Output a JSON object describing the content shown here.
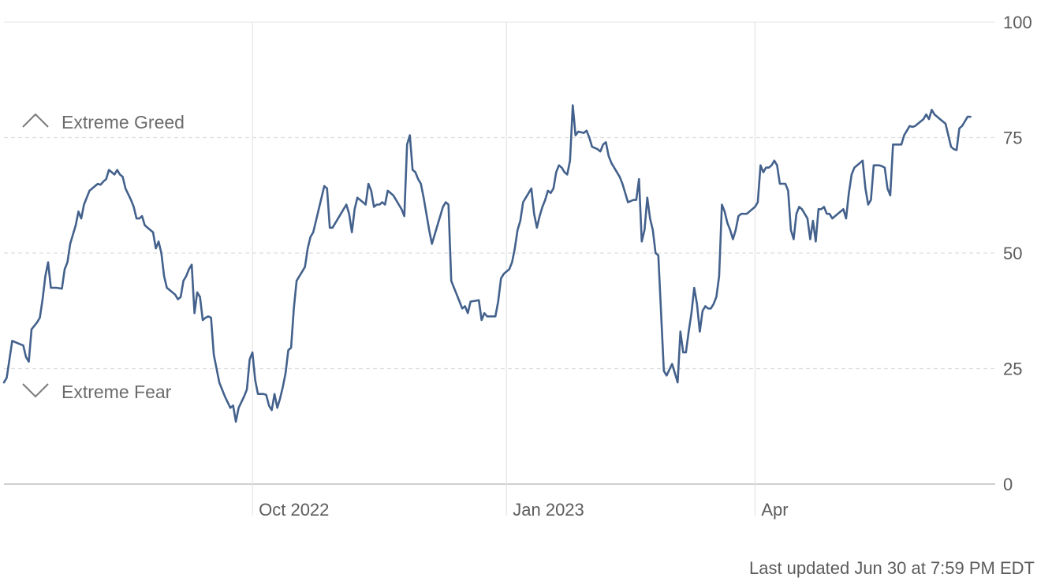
{
  "chart_data": {
    "type": "line",
    "ylim": [
      0,
      100
    ],
    "y_ticks": [
      "0",
      "25",
      "50",
      "75",
      "100"
    ],
    "x_ticks": [
      {
        "label": "Oct 2022",
        "day": 90
      },
      {
        "label": "Jan 2023",
        "day": 182
      },
      {
        "label": "Apr",
        "day": 272
      }
    ],
    "x_range_days": [
      0,
      359
    ],
    "grid": true,
    "zones": [
      {
        "label": "Extreme Greed",
        "icon": "chevron-up-icon"
      },
      {
        "label": "Extreme Fear",
        "icon": "chevron-down-icon"
      }
    ],
    "series": [
      {
        "color": "#43618c",
        "points": [
          [
            0,
            22
          ],
          [
            1,
            23
          ],
          [
            3,
            31
          ],
          [
            5,
            30.5
          ],
          [
            7,
            30
          ],
          [
            8,
            27.5
          ],
          [
            9,
            26.5
          ],
          [
            10,
            33.5
          ],
          [
            12,
            35
          ],
          [
            13,
            36
          ],
          [
            14,
            40
          ],
          [
            15,
            45
          ],
          [
            16,
            48
          ],
          [
            17,
            42.5
          ],
          [
            19,
            42.5
          ],
          [
            21,
            42.3
          ],
          [
            22,
            46.5
          ],
          [
            23,
            48
          ],
          [
            24,
            52
          ],
          [
            26,
            56
          ],
          [
            27,
            59
          ],
          [
            28,
            57.5
          ],
          [
            29,
            60.5
          ],
          [
            30,
            62
          ],
          [
            31,
            63.5
          ],
          [
            32,
            64
          ],
          [
            33,
            64.5
          ],
          [
            34,
            65
          ],
          [
            35,
            64.8
          ],
          [
            36,
            65.5
          ],
          [
            37,
            66
          ],
          [
            38,
            68
          ],
          [
            39,
            67.5
          ],
          [
            40,
            67
          ],
          [
            41,
            68
          ],
          [
            42,
            67
          ],
          [
            43,
            66.5
          ],
          [
            44,
            64
          ],
          [
            46,
            61.5
          ],
          [
            47,
            60
          ],
          [
            48,
            57.5
          ],
          [
            49,
            57.5
          ],
          [
            50,
            58
          ],
          [
            51,
            56
          ],
          [
            53,
            55
          ],
          [
            54,
            54.5
          ],
          [
            55,
            51
          ],
          [
            56,
            52.5
          ],
          [
            57,
            50
          ],
          [
            58,
            45
          ],
          [
            59,
            42.5
          ],
          [
            61,
            41.5
          ],
          [
            62,
            41
          ],
          [
            63,
            40
          ],
          [
            64,
            40.5
          ],
          [
            65,
            44
          ],
          [
            66,
            45
          ],
          [
            67,
            46.5
          ],
          [
            68,
            47.5
          ],
          [
            69,
            37
          ],
          [
            70,
            41.5
          ],
          [
            71,
            40.5
          ],
          [
            72,
            35.5
          ],
          [
            73,
            36
          ],
          [
            74,
            36.3
          ],
          [
            75,
            36
          ],
          [
            76,
            28
          ],
          [
            78,
            22
          ],
          [
            80,
            19
          ],
          [
            82,
            16.5
          ],
          [
            83,
            17
          ],
          [
            84,
            13.5
          ],
          [
            85,
            16.5
          ],
          [
            87,
            19
          ],
          [
            88,
            20.5
          ],
          [
            89,
            27
          ],
          [
            90,
            28.5
          ],
          [
            91,
            22.5
          ],
          [
            92,
            19.5
          ],
          [
            94,
            19.5
          ],
          [
            95,
            19.3
          ],
          [
            96,
            17
          ],
          [
            97,
            16
          ],
          [
            98,
            19.5
          ],
          [
            99,
            16.5
          ],
          [
            100,
            18.5
          ],
          [
            101,
            21
          ],
          [
            102,
            24
          ],
          [
            103,
            29
          ],
          [
            104,
            29.5
          ],
          [
            105,
            38
          ],
          [
            106,
            44
          ],
          [
            108,
            46
          ],
          [
            109,
            47
          ],
          [
            110,
            51
          ],
          [
            111,
            53.5
          ],
          [
            112,
            54.5
          ],
          [
            113,
            57
          ],
          [
            114,
            59.5
          ],
          [
            115,
            62
          ],
          [
            116,
            64.5
          ],
          [
            117,
            64
          ],
          [
            118,
            55.5
          ],
          [
            119,
            55.5
          ],
          [
            121,
            57.5
          ],
          [
            122,
            58.5
          ],
          [
            123,
            59.5
          ],
          [
            124,
            60.5
          ],
          [
            125,
            58.5
          ],
          [
            126,
            54.5
          ],
          [
            127,
            59.5
          ],
          [
            128,
            62
          ],
          [
            129,
            61.5
          ],
          [
            130,
            61
          ],
          [
            131,
            60.5
          ],
          [
            132,
            65
          ],
          [
            133,
            63.5
          ],
          [
            134,
            60
          ],
          [
            135,
            60.5
          ],
          [
            136,
            60.5
          ],
          [
            137,
            61
          ],
          [
            138,
            60.5
          ],
          [
            139,
            63.5
          ],
          [
            140,
            63
          ],
          [
            141,
            62.5
          ],
          [
            142,
            61.5
          ],
          [
            143,
            60.5
          ],
          [
            144,
            59.5
          ],
          [
            145,
            58
          ],
          [
            146,
            73.5
          ],
          [
            147,
            75.5
          ],
          [
            148,
            68
          ],
          [
            149,
            67.5
          ],
          [
            150,
            66
          ],
          [
            151,
            65
          ],
          [
            152,
            62
          ],
          [
            153,
            58.5
          ],
          [
            154,
            55
          ],
          [
            155,
            52
          ],
          [
            156,
            54
          ],
          [
            157,
            56
          ],
          [
            158,
            58
          ],
          [
            159,
            60
          ],
          [
            160,
            61
          ],
          [
            161,
            60.5
          ],
          [
            162,
            44
          ],
          [
            163,
            42.5
          ],
          [
            164,
            41
          ],
          [
            165,
            39.5
          ],
          [
            166,
            38
          ],
          [
            167,
            38.5
          ],
          [
            168,
            37
          ],
          [
            169,
            39.5
          ],
          [
            172,
            39.8
          ],
          [
            173,
            35.5
          ],
          [
            174,
            37
          ],
          [
            175,
            36.3
          ],
          [
            178,
            36.3
          ],
          [
            179,
            39.5
          ],
          [
            180,
            44.5
          ],
          [
            181,
            45.5
          ],
          [
            182,
            46
          ],
          [
            183,
            46.5
          ],
          [
            184,
            48
          ],
          [
            185,
            51
          ],
          [
            186,
            55
          ],
          [
            187,
            57
          ],
          [
            188,
            61
          ],
          [
            189,
            62
          ],
          [
            190,
            63
          ],
          [
            191,
            64
          ],
          [
            192,
            58.5
          ],
          [
            193,
            55.5
          ],
          [
            194,
            58
          ],
          [
            195,
            60
          ],
          [
            196,
            61.5
          ],
          [
            197,
            63.5
          ],
          [
            198,
            63
          ],
          [
            199,
            64
          ],
          [
            200,
            67.5
          ],
          [
            201,
            69
          ],
          [
            202,
            68.5
          ],
          [
            203,
            67.5
          ],
          [
            204,
            67
          ],
          [
            205,
            70
          ],
          [
            206,
            82
          ],
          [
            207,
            75.5
          ],
          [
            208,
            76.3
          ],
          [
            210,
            76
          ],
          [
            211,
            76.5
          ],
          [
            212,
            75
          ],
          [
            213,
            73
          ],
          [
            215,
            72.5
          ],
          [
            216,
            72
          ],
          [
            217,
            73.5
          ],
          [
            218,
            74
          ],
          [
            219,
            71
          ],
          [
            220,
            69.5
          ],
          [
            221,
            68.5
          ],
          [
            222,
            67.5
          ],
          [
            223,
            66.5
          ],
          [
            224,
            65
          ],
          [
            225,
            63
          ],
          [
            226,
            61
          ],
          [
            228,
            61.5
          ],
          [
            229,
            61.5
          ],
          [
            230,
            66
          ],
          [
            231,
            52.5
          ],
          [
            232,
            55
          ],
          [
            233,
            62
          ],
          [
            234,
            57.5
          ],
          [
            235,
            55
          ],
          [
            236,
            50
          ],
          [
            237,
            49.5
          ],
          [
            238,
            37
          ],
          [
            239,
            24.5
          ],
          [
            240,
            23.5
          ],
          [
            242,
            26
          ],
          [
            243,
            24
          ],
          [
            244,
            22
          ],
          [
            245,
            33
          ],
          [
            246,
            28.5
          ],
          [
            247,
            28.5
          ],
          [
            248,
            33
          ],
          [
            249,
            37
          ],
          [
            250,
            42.5
          ],
          [
            251,
            39
          ],
          [
            252,
            33
          ],
          [
            253,
            37.5
          ],
          [
            254,
            38.5
          ],
          [
            255,
            38
          ],
          [
            256,
            38
          ],
          [
            257,
            39
          ],
          [
            258,
            40.5
          ],
          [
            259,
            45
          ],
          [
            260,
            60.5
          ],
          [
            261,
            59
          ],
          [
            262,
            56.5
          ],
          [
            263,
            55
          ],
          [
            264,
            53
          ],
          [
            265,
            55
          ],
          [
            266,
            58
          ],
          [
            267,
            58.5
          ],
          [
            268,
            58.5
          ],
          [
            269,
            58.5
          ],
          [
            270,
            59
          ],
          [
            271,
            59.5
          ],
          [
            272,
            60
          ],
          [
            273,
            61
          ],
          [
            274,
            69
          ],
          [
            275,
            67.5
          ],
          [
            276,
            68.5
          ],
          [
            277,
            68.5
          ],
          [
            278,
            69
          ],
          [
            279,
            70
          ],
          [
            280,
            69
          ],
          [
            281,
            65
          ],
          [
            282,
            65
          ],
          [
            283,
            65
          ],
          [
            284,
            63.5
          ],
          [
            285,
            55
          ],
          [
            286,
            53
          ],
          [
            287,
            58.5
          ],
          [
            288,
            60
          ],
          [
            289,
            59.5
          ],
          [
            290,
            58.5
          ],
          [
            291,
            57.5
          ],
          [
            292,
            53
          ],
          [
            293,
            57
          ],
          [
            294,
            52.5
          ],
          [
            295,
            59.5
          ],
          [
            296,
            59.5
          ],
          [
            297,
            60
          ],
          [
            298,
            58.5
          ],
          [
            299,
            58.5
          ],
          [
            300,
            57.5
          ],
          [
            301,
            58
          ],
          [
            302,
            58.5
          ],
          [
            303,
            59
          ],
          [
            304,
            59.5
          ],
          [
            305,
            57.5
          ],
          [
            306,
            63
          ],
          [
            307,
            67
          ],
          [
            308,
            68.5
          ],
          [
            309,
            69
          ],
          [
            310,
            69.5
          ],
          [
            311,
            70
          ],
          [
            312,
            64
          ],
          [
            313,
            60.5
          ],
          [
            314,
            61.5
          ],
          [
            315,
            69
          ],
          [
            316,
            69
          ],
          [
            317,
            69
          ],
          [
            318,
            68.8
          ],
          [
            319,
            68.5
          ],
          [
            320,
            64
          ],
          [
            321,
            62.5
          ],
          [
            322,
            73.5
          ],
          [
            323,
            73.5
          ],
          [
            325,
            73.5
          ],
          [
            326,
            75.5
          ],
          [
            327,
            76.5
          ],
          [
            328,
            77.5
          ],
          [
            329,
            77.3
          ],
          [
            330,
            77.5
          ],
          [
            331,
            78
          ],
          [
            332,
            78.5
          ],
          [
            333,
            79
          ],
          [
            334,
            80
          ],
          [
            335,
            79
          ],
          [
            336,
            81
          ],
          [
            337,
            80
          ],
          [
            338,
            79.5
          ],
          [
            339,
            79
          ],
          [
            340,
            78.5
          ],
          [
            341,
            78
          ],
          [
            343,
            73
          ],
          [
            344,
            72.5
          ],
          [
            345,
            72.3
          ],
          [
            346,
            77
          ],
          [
            347,
            77.5
          ],
          [
            348,
            78.5
          ],
          [
            349,
            79.5
          ],
          [
            350,
            79.5
          ]
        ]
      }
    ]
  },
  "footer": {
    "last_updated": "Last updated Jun 30 at 7:59 PM EDT"
  }
}
